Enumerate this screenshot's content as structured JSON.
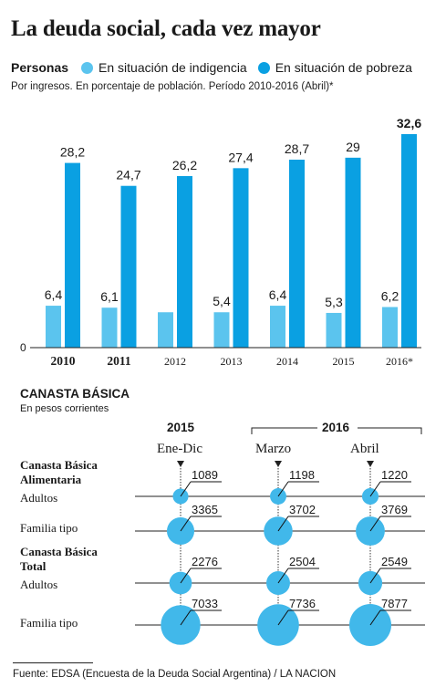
{
  "title": "La deuda social, cada vez mayor",
  "legend": {
    "label": "Personas",
    "items": [
      {
        "name": "En situación de indigencia",
        "color": "#5bc4ee"
      },
      {
        "name": "En situación de pobreza",
        "color": "#0aa0e2"
      }
    ]
  },
  "subtitle": "Por ingresos. En porcentaje de población. Período 2010-2016 (Abril)*",
  "chart_data": [
    {
      "type": "bar",
      "title": "La deuda social, cada vez mayor",
      "categories": [
        "2010",
        "2011",
        "2012",
        "2013",
        "2014",
        "2015",
        "2016*"
      ],
      "series": [
        {
          "name": "En situación de indigencia",
          "values": [
            6.4,
            6.1,
            5.4,
            5.4,
            6.4,
            5.3,
            6.2
          ],
          "labels": [
            "6,4",
            "6,1",
            "",
            "5,4",
            "6,4",
            "5,3",
            "6,2"
          ],
          "color": "#5bc4ee"
        },
        {
          "name": "En situación de pobreza",
          "values": [
            28.2,
            24.7,
            26.2,
            27.4,
            28.7,
            29,
            32.6
          ],
          "labels": [
            "28,2",
            "24,7",
            "26,2",
            "27,4",
            "28,7",
            "29",
            "32,6"
          ],
          "color": "#0aa0e2"
        }
      ],
      "ylim": [
        0,
        33
      ],
      "y_zero_label": "0",
      "bold_categories": [
        "2010",
        "2011"
      ],
      "bold_labels": [
        "32,6"
      ]
    },
    {
      "type": "table",
      "title": "CANASTA BÁSICA",
      "subtitle": "En pesos corrientes",
      "year_groups": [
        {
          "label": "2015"
        },
        {
          "label": "2016"
        }
      ],
      "columns": [
        "Ene-Dic",
        "Marzo",
        "Abril"
      ],
      "sections": [
        {
          "label_lines": [
            "Canasta Básica",
            "Alimentaria"
          ],
          "rows": [
            {
              "label": "Adultos",
              "values": [
                1089,
                1198,
                1220
              ]
            },
            {
              "label": "Familia tipo",
              "values": [
                3365,
                3702,
                3769
              ]
            }
          ]
        },
        {
          "label_lines": [
            "Canasta Básica",
            "Total"
          ],
          "rows": [
            {
              "label": "Adultos",
              "values": [
                2276,
                2504,
                2549
              ]
            },
            {
              "label": "Familia tipo",
              "values": [
                7033,
                7736,
                7877
              ]
            }
          ]
        }
      ],
      "color": "#41b8ea"
    }
  ],
  "footer": "Fuente:  EDSA (Encuesta de la Deuda Social Argentina) / LA NACION"
}
